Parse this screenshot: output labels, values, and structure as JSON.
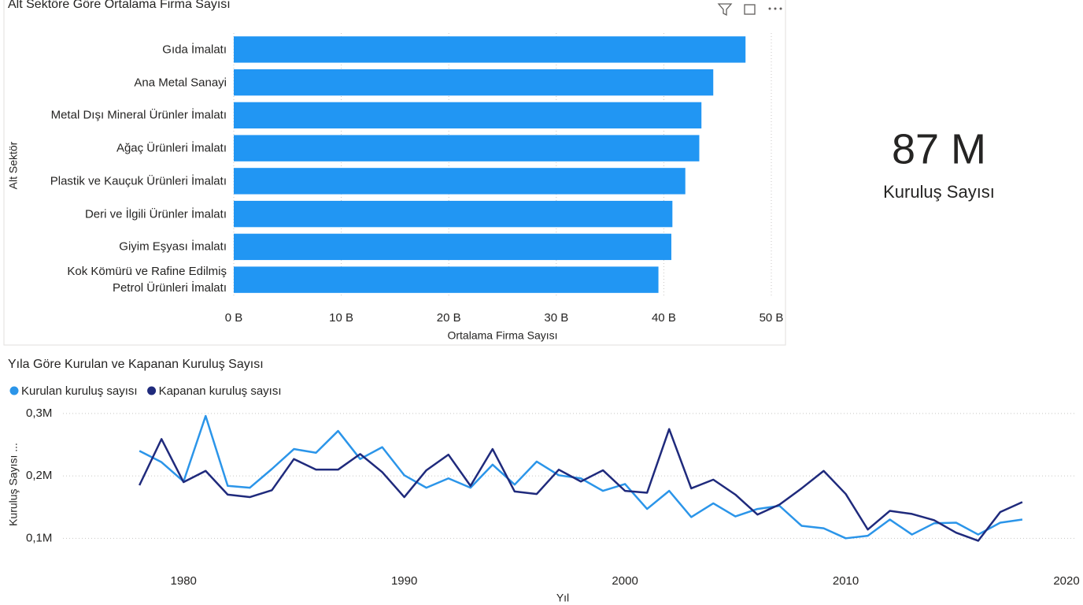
{
  "chart_data": [
    {
      "type": "bar",
      "orientation": "horizontal",
      "title": "Alt Sektöre Göre Ortalama Firma Sayısı",
      "categories": [
        "Gıda İmalatı",
        "Ana Metal Sanayi",
        "Metal Dışı Mineral Ürünler İmalatı",
        "Ağaç Ürünleri İmalatı",
        "Plastik ve Kauçuk Ürünleri İmalatı",
        "Deri ve İlgili Ürünler İmalatı",
        "Giyim Eşyası İmalatı",
        "Kok Kömürü ve Rafine Edilmiş Petrol Ürünleri İmalatı"
      ],
      "values": [
        47.6,
        44.6,
        43.5,
        43.3,
        42.0,
        40.8,
        40.7,
        39.5
      ],
      "color": "#2196f3",
      "xlim": [
        0,
        50
      ],
      "xticks": [
        {
          "value": 0,
          "label": "0 B"
        },
        {
          "value": 10,
          "label": "10 B"
        },
        {
          "value": 20,
          "label": "20 B"
        },
        {
          "value": 30,
          "label": "30 B"
        },
        {
          "value": 40,
          "label": "40 B"
        },
        {
          "value": 50,
          "label": "50 B"
        }
      ],
      "xlabel": "Ortalama Firma Sayısı",
      "ylabel": "Alt Sektör",
      "grid": true
    },
    {
      "type": "line",
      "title": "Yıla Göre Kurulan ve Kapanan Kuruluş Sayısı",
      "x": [
        1978,
        1979,
        1980,
        1981,
        1982,
        1983,
        1984,
        1985,
        1986,
        1987,
        1988,
        1989,
        1990,
        1991,
        1992,
        1993,
        1994,
        1995,
        1996,
        1997,
        1998,
        1999,
        2000,
        2001,
        2002,
        2003,
        2004,
        2005,
        2006,
        2007,
        2008,
        2009,
        2010,
        2011,
        2012,
        2013,
        2014,
        2015,
        2016,
        2017,
        2018
      ],
      "series": [
        {
          "name": "Kurulan kuruluş sayısı",
          "color": "#2b95e9",
          "values": [
            0.24,
            0.222,
            0.191,
            0.296,
            0.184,
            0.181,
            0.211,
            0.243,
            0.237,
            0.272,
            0.227,
            0.246,
            0.201,
            0.181,
            0.196,
            0.181,
            0.218,
            0.186,
            0.223,
            0.201,
            0.196,
            0.176,
            0.187,
            0.147,
            0.176,
            0.134,
            0.156,
            0.135,
            0.147,
            0.152,
            0.12,
            0.116,
            0.1,
            0.104,
            0.13,
            0.106,
            0.124,
            0.125,
            0.106,
            0.125,
            0.13
          ]
        },
        {
          "name": "Kapanan kuruluş sayısı",
          "color": "#1f2a7c",
          "values": [
            0.185,
            0.259,
            0.19,
            0.208,
            0.17,
            0.166,
            0.177,
            0.227,
            0.21,
            0.21,
            0.235,
            0.206,
            0.166,
            0.209,
            0.234,
            0.184,
            0.243,
            0.175,
            0.171,
            0.21,
            0.191,
            0.209,
            0.176,
            0.173,
            0.275,
            0.18,
            0.194,
            0.17,
            0.138,
            0.154,
            0.18,
            0.208,
            0.171,
            0.114,
            0.144,
            0.139,
            0.129,
            0.109,
            0.096,
            0.142,
            0.158
          ]
        }
      ],
      "xlim": [
        1975,
        2020
      ],
      "xticks": [
        1980,
        1990,
        2000,
        2010,
        2020
      ],
      "ylim": [
        0.06,
        0.315
      ],
      "yticks": [
        {
          "value": 0.1,
          "label": "0,1M"
        },
        {
          "value": 0.2,
          "label": "0,2M"
        },
        {
          "value": 0.3,
          "label": "0,3M"
        }
      ],
      "xlabel": "Yıl",
      "ylabel": "Kuruluş Sayısı ...",
      "grid": true
    }
  ],
  "card": {
    "value": "87 M",
    "label": "Kuruluş Sayısı"
  }
}
